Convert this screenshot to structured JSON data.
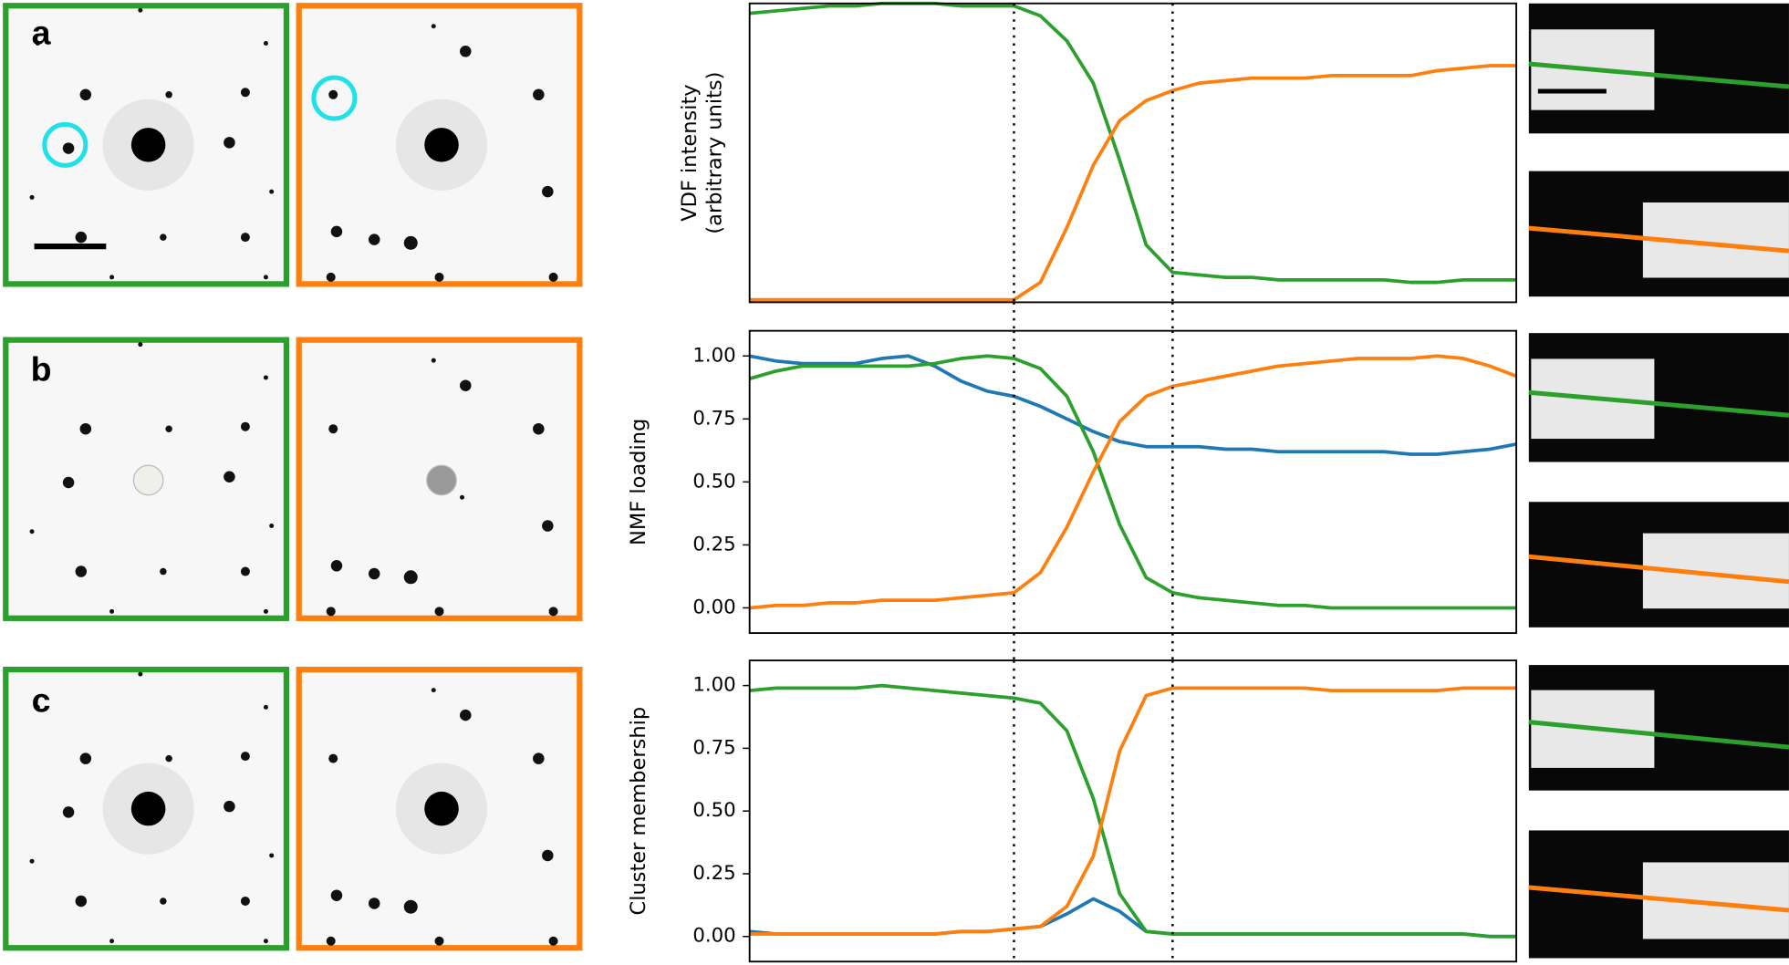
{
  "chart_data": [
    {
      "type": "line",
      "panel_label": "a",
      "ylabel": [
        "VDF intensity",
        "(arbitrary units)"
      ],
      "categories": [
        null,
        null,
        null,
        null,
        null,
        null,
        null,
        null,
        null,
        null,
        null,
        null,
        null,
        null,
        null,
        null,
        null,
        null,
        null,
        null,
        null,
        null,
        null,
        null,
        null,
        null,
        null,
        null,
        null,
        null
      ],
      "ylim": [
        -0.1,
        1.1
      ],
      "vlines": [
        10,
        16
      ],
      "series": [
        {
          "color": "#2ca02c",
          "values": [
            1.06,
            1.07,
            1.08,
            1.09,
            1.09,
            1.1,
            1.1,
            1.1,
            1.09,
            1.09,
            1.09,
            1.05,
            0.95,
            0.78,
            0.47,
            0.13,
            0.02,
            0.01,
            0.0,
            0.0,
            -0.01,
            -0.01,
            -0.01,
            -0.01,
            -0.01,
            -0.02,
            -0.02,
            -0.01,
            -0.01,
            -0.01
          ]
        },
        {
          "color": "#ff7f0e",
          "values": [
            -0.09,
            -0.09,
            -0.09,
            -0.09,
            -0.09,
            -0.09,
            -0.09,
            -0.09,
            -0.09,
            -0.09,
            -0.09,
            -0.02,
            0.2,
            0.45,
            0.63,
            0.71,
            0.75,
            0.78,
            0.79,
            0.8,
            0.8,
            0.8,
            0.81,
            0.81,
            0.81,
            0.81,
            0.83,
            0.84,
            0.85,
            0.85
          ]
        }
      ]
    },
    {
      "type": "line",
      "panel_label": "b",
      "ylabel": "NMF loading",
      "categories": [
        null,
        null,
        null,
        null,
        null,
        null,
        null,
        null,
        null,
        null,
        null,
        null,
        null,
        null,
        null,
        null,
        null,
        null,
        null,
        null,
        null,
        null,
        null,
        null,
        null,
        null,
        null,
        null,
        null,
        null
      ],
      "ylim": [
        -0.1,
        1.1
      ],
      "vlines": [
        10,
        16
      ],
      "yticks": [
        {
          "value": 0,
          "label": "0.00"
        },
        {
          "value": 0.25,
          "label": "0.25"
        },
        {
          "value": 0.5,
          "label": "0.50"
        },
        {
          "value": 0.75,
          "label": "0.75"
        },
        {
          "value": 1,
          "label": "1.00"
        }
      ],
      "series": [
        {
          "color": "#1f77b4",
          "values": [
            1.0,
            0.98,
            0.97,
            0.97,
            0.97,
            0.99,
            1.0,
            0.96,
            0.9,
            0.86,
            0.84,
            0.8,
            0.75,
            0.7,
            0.66,
            0.64,
            0.64,
            0.64,
            0.63,
            0.63,
            0.62,
            0.62,
            0.62,
            0.62,
            0.62,
            0.61,
            0.61,
            0.62,
            0.63,
            0.65
          ]
        },
        {
          "color": "#2ca02c",
          "values": [
            0.91,
            0.94,
            0.96,
            0.96,
            0.96,
            0.96,
            0.96,
            0.97,
            0.99,
            1.0,
            0.99,
            0.95,
            0.84,
            0.62,
            0.33,
            0.12,
            0.06,
            0.04,
            0.03,
            0.02,
            0.01,
            0.01,
            0.0,
            0.0,
            0.0,
            0.0,
            0.0,
            0.0,
            0.0,
            0.0
          ]
        },
        {
          "color": "#ff7f0e",
          "values": [
            0.0,
            0.01,
            0.01,
            0.02,
            0.02,
            0.03,
            0.03,
            0.03,
            0.04,
            0.05,
            0.06,
            0.14,
            0.32,
            0.54,
            0.74,
            0.84,
            0.88,
            0.9,
            0.92,
            0.94,
            0.96,
            0.97,
            0.98,
            0.99,
            0.99,
            0.99,
            1.0,
            0.99,
            0.96,
            0.92
          ]
        }
      ]
    },
    {
      "type": "line",
      "panel_label": "c",
      "ylabel": "Cluster membership",
      "categories": [
        null,
        null,
        null,
        null,
        null,
        null,
        null,
        null,
        null,
        null,
        null,
        null,
        null,
        null,
        null,
        null,
        null,
        null,
        null,
        null,
        null,
        null,
        null,
        null,
        null,
        null,
        null,
        null,
        null,
        null
      ],
      "ylim": [
        -0.1,
        1.1
      ],
      "vlines": [
        10,
        16
      ],
      "yticks": [
        {
          "value": 0,
          "label": "0.00"
        },
        {
          "value": 0.25,
          "label": "0.25"
        },
        {
          "value": 0.5,
          "label": "0.50"
        },
        {
          "value": 0.75,
          "label": "0.75"
        },
        {
          "value": 1,
          "label": "1.00"
        }
      ],
      "series": [
        {
          "color": "#1f77b4",
          "values": [
            0.02,
            0.01,
            0.01,
            0.01,
            0.01,
            0.01,
            0.01,
            0.01,
            0.02,
            0.02,
            0.03,
            0.04,
            0.09,
            0.15,
            0.1,
            0.02,
            0.01,
            0.01,
            0.01,
            0.01,
            0.01,
            0.01,
            0.01,
            0.01,
            0.01,
            0.01,
            0.01,
            0.01,
            0.0,
            0.0
          ]
        },
        {
          "color": "#2ca02c",
          "values": [
            0.98,
            0.99,
            0.99,
            0.99,
            0.99,
            1.0,
            0.99,
            0.98,
            0.97,
            0.96,
            0.95,
            0.93,
            0.82,
            0.55,
            0.17,
            0.02,
            0.01,
            0.01,
            0.01,
            0.01,
            0.01,
            0.01,
            0.01,
            0.01,
            0.01,
            0.01,
            0.01,
            0.01,
            0.0,
            0.0
          ]
        },
        {
          "color": "#ff7f0e",
          "values": [
            0.01,
            0.01,
            0.01,
            0.01,
            0.01,
            0.01,
            0.01,
            0.01,
            0.02,
            0.02,
            0.03,
            0.04,
            0.12,
            0.32,
            0.74,
            0.96,
            0.99,
            0.99,
            0.99,
            0.99,
            0.99,
            0.99,
            0.98,
            0.98,
            0.98,
            0.98,
            0.98,
            0.99,
            0.99,
            0.99
          ]
        }
      ]
    }
  ]
}
